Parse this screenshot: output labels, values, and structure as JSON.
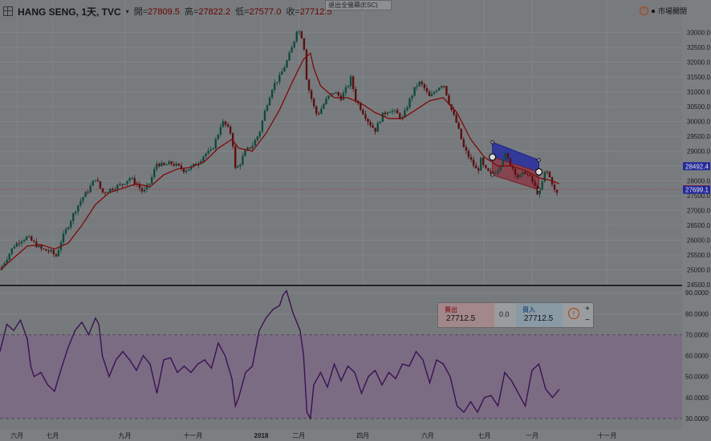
{
  "header": {
    "symbol": "HANG SENG, 1天, TVC",
    "open_label": "開=",
    "open": "27809.5",
    "high_label": "高=",
    "high": "27822.2",
    "low_label": "低=",
    "low": "27577.0",
    "close_label": "收=",
    "close": "27712.5"
  },
  "exit_fullscreen": "退出全螢幕(ESC)",
  "market_status": "市場關閉",
  "trade_panel": {
    "sell_label": "賣出",
    "sell_price": "27712.5",
    "spread": "0.0",
    "buy_label": "買入",
    "buy_price": "27712.5",
    "plus": "+",
    "minus": "−"
  },
  "colors": {
    "background": "#777a7d",
    "candle_up": "#0f4a3a",
    "candle_down": "#5a1010",
    "ma_line": "#7d0b0b",
    "rsi_line": "#3b1152",
    "rsi_band": "#7b6a84",
    "channel_upper": "#2027a0",
    "channel_lower": "#8a3544"
  },
  "chart_data": [
    {
      "type": "candlestick",
      "title": "HANG SENG, 1天, TVC",
      "ylim": [
        24500,
        33500
      ],
      "y_ticks": [
        "33000.0",
        "32500.0",
        "32000.0",
        "31500.0",
        "31000.0",
        "30500.0",
        "30000.0",
        "29500.0",
        "29000.0",
        "28500.0",
        "28000.0",
        "27500.0",
        "27000.0",
        "26500.0",
        "26000.0",
        "25500.0",
        "25000.0",
        "24500.0"
      ],
      "x_ticks": [
        "六月",
        "七月",
        "九月",
        "十一月",
        "2018",
        "二月",
        "四月",
        "六月",
        "七月",
        "一月",
        "十一月"
      ],
      "x_tick_fracs": [
        0.025,
        0.077,
        0.183,
        0.283,
        0.383,
        0.438,
        0.532,
        0.627,
        0.71,
        0.78,
        0.89
      ],
      "last_price": "27712.5",
      "price_labels": [
        {
          "value": 28492.4,
          "text": "28492.4",
          "color": "#23289a"
        },
        {
          "value": 27712.5,
          "text": "27712.5",
          "color": "#b01818"
        },
        {
          "value": 27699.1,
          "text": "27699.1",
          "color": "#23289a"
        }
      ],
      "close_path": [
        [
          0.0,
          25000
        ],
        [
          0.01,
          25400
        ],
        [
          0.02,
          25800
        ],
        [
          0.03,
          26000
        ],
        [
          0.04,
          26100
        ],
        [
          0.05,
          25900
        ],
        [
          0.06,
          25700
        ],
        [
          0.075,
          25600
        ],
        [
          0.082,
          25450
        ],
        [
          0.09,
          26000
        ],
        [
          0.1,
          26500
        ],
        [
          0.11,
          27000
        ],
        [
          0.12,
          27400
        ],
        [
          0.13,
          27700
        ],
        [
          0.14,
          28100
        ],
        [
          0.15,
          27600
        ],
        [
          0.16,
          27700
        ],
        [
          0.17,
          27800
        ],
        [
          0.18,
          27900
        ],
        [
          0.19,
          28100
        ],
        [
          0.2,
          27900
        ],
        [
          0.21,
          27600
        ],
        [
          0.22,
          27950
        ],
        [
          0.23,
          28600
        ],
        [
          0.24,
          28500
        ],
        [
          0.25,
          28600
        ],
        [
          0.26,
          28500
        ],
        [
          0.27,
          28350
        ],
        [
          0.28,
          28450
        ],
        [
          0.29,
          28600
        ],
        [
          0.3,
          28900
        ],
        [
          0.31,
          29000
        ],
        [
          0.32,
          29600
        ],
        [
          0.325,
          30000
        ],
        [
          0.33,
          29900
        ],
        [
          0.34,
          29550
        ],
        [
          0.345,
          28400
        ],
        [
          0.35,
          28500
        ],
        [
          0.36,
          29000
        ],
        [
          0.37,
          29200
        ],
        [
          0.38,
          29600
        ],
        [
          0.39,
          30500
        ],
        [
          0.4,
          31200
        ],
        [
          0.41,
          31500
        ],
        [
          0.42,
          32000
        ],
        [
          0.425,
          32300
        ],
        [
          0.43,
          32600
        ],
        [
          0.435,
          33100
        ],
        [
          0.44,
          33000
        ],
        [
          0.445,
          32700
        ],
        [
          0.45,
          31300
        ],
        [
          0.455,
          30900
        ],
        [
          0.46,
          30500
        ],
        [
          0.465,
          30200
        ],
        [
          0.47,
          30400
        ],
        [
          0.48,
          30800
        ],
        [
          0.49,
          31000
        ],
        [
          0.5,
          30800
        ],
        [
          0.51,
          31200
        ],
        [
          0.515,
          31500
        ],
        [
          0.52,
          30800
        ],
        [
          0.53,
          30400
        ],
        [
          0.54,
          30000
        ],
        [
          0.55,
          29700
        ],
        [
          0.56,
          30200
        ],
        [
          0.57,
          30400
        ],
        [
          0.58,
          30300
        ],
        [
          0.59,
          30100
        ],
        [
          0.6,
          30700
        ],
        [
          0.61,
          31200
        ],
        [
          0.615,
          31300
        ],
        [
          0.62,
          31200
        ],
        [
          0.63,
          30800
        ],
        [
          0.64,
          31100
        ],
        [
          0.65,
          31300
        ],
        [
          0.655,
          30900
        ],
        [
          0.66,
          30500
        ],
        [
          0.67,
          29900
        ],
        [
          0.68,
          29100
        ],
        [
          0.69,
          28700
        ],
        [
          0.7,
          28300
        ],
        [
          0.705,
          28700
        ],
        [
          0.71,
          28400
        ],
        [
          0.72,
          28200
        ],
        [
          0.73,
          28400
        ],
        [
          0.74,
          28900
        ],
        [
          0.75,
          28500
        ],
        [
          0.76,
          28100
        ],
        [
          0.77,
          28300
        ],
        [
          0.78,
          28000
        ],
        [
          0.79,
          27500
        ],
        [
          0.8,
          28400
        ],
        [
          0.81,
          27900
        ],
        [
          0.815,
          27500
        ],
        [
          0.82,
          27700
        ]
      ],
      "ma_path": [
        [
          0.0,
          25000
        ],
        [
          0.02,
          25400
        ],
        [
          0.04,
          25800
        ],
        [
          0.06,
          25850
        ],
        [
          0.08,
          25700
        ],
        [
          0.1,
          25900
        ],
        [
          0.12,
          26500
        ],
        [
          0.14,
          27200
        ],
        [
          0.16,
          27600
        ],
        [
          0.18,
          27750
        ],
        [
          0.2,
          27900
        ],
        [
          0.22,
          27800
        ],
        [
          0.24,
          28200
        ],
        [
          0.26,
          28400
        ],
        [
          0.28,
          28450
        ],
        [
          0.3,
          28650
        ],
        [
          0.32,
          29100
        ],
        [
          0.34,
          29400
        ],
        [
          0.35,
          29100
        ],
        [
          0.37,
          29000
        ],
        [
          0.39,
          29600
        ],
        [
          0.41,
          30400
        ],
        [
          0.43,
          31400
        ],
        [
          0.445,
          32100
        ],
        [
          0.455,
          32300
        ],
        [
          0.46,
          31800
        ],
        [
          0.47,
          31200
        ],
        [
          0.49,
          30800
        ],
        [
          0.51,
          30800
        ],
        [
          0.53,
          30600
        ],
        [
          0.55,
          30300
        ],
        [
          0.57,
          30100
        ],
        [
          0.59,
          30100
        ],
        [
          0.61,
          30400
        ],
        [
          0.63,
          30700
        ],
        [
          0.65,
          30800
        ],
        [
          0.67,
          30300
        ],
        [
          0.69,
          29400
        ],
        [
          0.71,
          28800
        ],
        [
          0.73,
          28500
        ],
        [
          0.75,
          28500
        ],
        [
          0.77,
          28350
        ],
        [
          0.79,
          28100
        ],
        [
          0.81,
          28000
        ],
        [
          0.82,
          27900
        ]
      ],
      "channel": {
        "upper": [
          [
            0.722,
            29300
          ],
          [
            0.79,
            28700
          ],
          [
            0.79,
            28300
          ],
          [
            0.722,
            28800
          ]
        ],
        "lower": [
          [
            0.722,
            28800
          ],
          [
            0.79,
            28300
          ],
          [
            0.79,
            27700
          ],
          [
            0.722,
            28200
          ]
        ],
        "handles": [
          [
            0.722,
            29300
          ],
          [
            0.79,
            28700
          ],
          [
            0.722,
            28200
          ],
          [
            0.79,
            27700
          ],
          [
            0.722,
            28800
          ],
          [
            0.79,
            28300
          ]
        ]
      }
    },
    {
      "type": "line",
      "title": "",
      "ylim": [
        25,
        92
      ],
      "y_ticks": [
        "90.0000",
        "80.0000",
        "70.0000",
        "60.0000",
        "50.0000",
        "40.0000",
        "30.0000"
      ],
      "band": [
        30,
        70
      ],
      "series": [
        {
          "values": [
            [
              0.0,
              62
            ],
            [
              0.01,
              75
            ],
            [
              0.02,
              72
            ],
            [
              0.03,
              77
            ],
            [
              0.04,
              68
            ],
            [
              0.045,
              55
            ],
            [
              0.05,
              50
            ],
            [
              0.06,
              52
            ],
            [
              0.07,
              46
            ],
            [
              0.08,
              43
            ],
            [
              0.09,
              54
            ],
            [
              0.1,
              64
            ],
            [
              0.11,
              72
            ],
            [
              0.12,
              76
            ],
            [
              0.13,
              70
            ],
            [
              0.14,
              78
            ],
            [
              0.145,
              75
            ],
            [
              0.15,
              60
            ],
            [
              0.16,
              50
            ],
            [
              0.17,
              58
            ],
            [
              0.18,
              62
            ],
            [
              0.19,
              58
            ],
            [
              0.2,
              53
            ],
            [
              0.21,
              60
            ],
            [
              0.22,
              56
            ],
            [
              0.23,
              42
            ],
            [
              0.24,
              58
            ],
            [
              0.25,
              59
            ],
            [
              0.26,
              52
            ],
            [
              0.27,
              55
            ],
            [
              0.28,
              52
            ],
            [
              0.29,
              56
            ],
            [
              0.3,
              58
            ],
            [
              0.31,
              54
            ],
            [
              0.32,
              66
            ],
            [
              0.33,
              60
            ],
            [
              0.34,
              49
            ],
            [
              0.345,
              36
            ],
            [
              0.35,
              40
            ],
            [
              0.36,
              52
            ],
            [
              0.37,
              55
            ],
            [
              0.38,
              72
            ],
            [
              0.39,
              78
            ],
            [
              0.4,
              82
            ],
            [
              0.41,
              84
            ],
            [
              0.415,
              89
            ],
            [
              0.42,
              91
            ],
            [
              0.43,
              80
            ],
            [
              0.44,
              72
            ],
            [
              0.445,
              60
            ],
            [
              0.45,
              33
            ],
            [
              0.455,
              30
            ],
            [
              0.46,
              46
            ],
            [
              0.47,
              52
            ],
            [
              0.48,
              45
            ],
            [
              0.49,
              56
            ],
            [
              0.5,
              48
            ],
            [
              0.51,
              55
            ],
            [
              0.52,
              52
            ],
            [
              0.53,
              42
            ],
            [
              0.54,
              50
            ],
            [
              0.55,
              53
            ],
            [
              0.56,
              46
            ],
            [
              0.57,
              52
            ],
            [
              0.58,
              49
            ],
            [
              0.59,
              56
            ],
            [
              0.6,
              55
            ],
            [
              0.61,
              62
            ],
            [
              0.62,
              58
            ],
            [
              0.63,
              47
            ],
            [
              0.64,
              58
            ],
            [
              0.65,
              56
            ],
            [
              0.66,
              50
            ],
            [
              0.67,
              36
            ],
            [
              0.68,
              33
            ],
            [
              0.69,
              38
            ],
            [
              0.7,
              33
            ],
            [
              0.71,
              40
            ],
            [
              0.72,
              41
            ],
            [
              0.73,
              36
            ],
            [
              0.74,
              52
            ],
            [
              0.75,
              48
            ],
            [
              0.76,
              42
            ],
            [
              0.77,
              36
            ],
            [
              0.78,
              53
            ],
            [
              0.79,
              56
            ],
            [
              0.8,
              44
            ],
            [
              0.81,
              40
            ],
            [
              0.82,
              44
            ]
          ]
        }
      ]
    }
  ]
}
